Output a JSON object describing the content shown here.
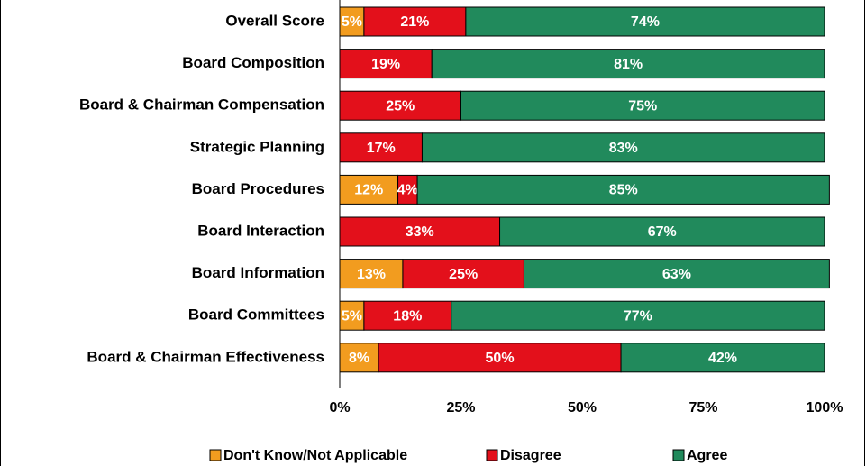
{
  "chart_data": {
    "type": "stacked_barh",
    "categories": [
      "Overall Score",
      "Board Composition",
      "Board & Chairman Compensation",
      "Strategic Planning",
      "Board Procedures",
      "Board Interaction",
      "Board Information",
      "Board Committees",
      "Board & Chairman Effectiveness"
    ],
    "series": [
      {
        "name": "Don't Know/Not Applicable",
        "color": "#f29c1f",
        "values": [
          5,
          null,
          null,
          null,
          12,
          null,
          13,
          5,
          8
        ],
        "value_labels": [
          "5%",
          null,
          null,
          null,
          "12%",
          null,
          "13%",
          "5%",
          "8%"
        ]
      },
      {
        "name": "Disagree",
        "color": "#e3101b",
        "values": [
          21,
          19,
          25,
          17,
          4,
          33,
          25,
          18,
          50
        ],
        "value_labels": [
          "21%",
          "19%",
          "25%",
          "17%",
          "4%",
          "33%",
          "25%",
          "18%",
          "50%"
        ]
      },
      {
        "name": "Agree",
        "color": "#218a5c",
        "values": [
          74,
          81,
          75,
          83,
          85,
          67,
          63,
          77,
          42
        ],
        "value_labels": [
          "74%",
          "81%",
          "75%",
          "83%",
          "85%",
          "67%",
          "63%",
          "77%",
          "42%"
        ]
      }
    ],
    "xlim": [
      0,
      100
    ],
    "xticks": [
      {
        "value": 0,
        "label": "0%"
      },
      {
        "value": 25,
        "label": "25%"
      },
      {
        "value": 50,
        "label": "50%"
      },
      {
        "value": 75,
        "label": "75%"
      },
      {
        "value": 100,
        "label": "100%"
      }
    ],
    "legend": "bottom"
  }
}
